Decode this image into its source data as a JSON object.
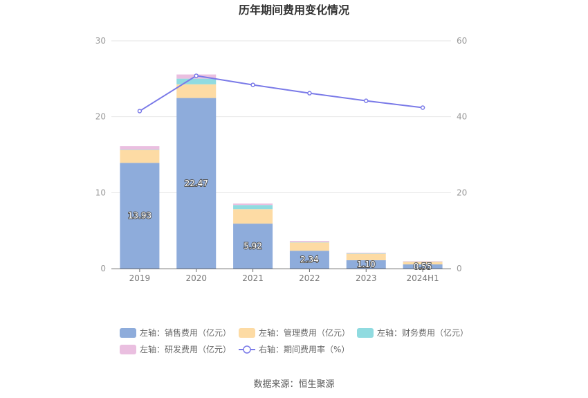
{
  "chart_data": {
    "type": "bar",
    "title": "历年期间费用变化情况",
    "source": "数据来源：恒生聚源",
    "categories": [
      "2019",
      "2020",
      "2021",
      "2022",
      "2023",
      "2024H1"
    ],
    "y_left": {
      "ylim": [
        0,
        30
      ],
      "ticks": [
        "0",
        "10",
        "20",
        "30"
      ]
    },
    "y_right": {
      "ylim": [
        0,
        60
      ],
      "ticks": [
        "0",
        "20",
        "40",
        "60"
      ]
    },
    "stacked": true,
    "grid": true,
    "legend_position": "bottom",
    "series": [
      {
        "name": "左轴：销售费用（亿元）",
        "type": "bar",
        "axis": "left",
        "color": "#8eacdb",
        "values": [
          13.93,
          22.47,
          5.92,
          2.34,
          1.1,
          0.55
        ],
        "labels": [
          "13.93",
          "22.47",
          "5.92",
          "2.34",
          "1.10",
          "0.55"
        ]
      },
      {
        "name": "左轴：管理费用（亿元）",
        "type": "bar",
        "axis": "left",
        "color": "#fddba4",
        "values": [
          1.7,
          1.8,
          1.9,
          1.1,
          0.85,
          0.35
        ]
      },
      {
        "name": "左轴：财务费用（亿元）",
        "type": "bar",
        "axis": "left",
        "color": "#90dbe0",
        "values": [
          0.05,
          0.75,
          0.55,
          0.05,
          0.05,
          0.02
        ]
      },
      {
        "name": "左轴：研发费用（亿元）",
        "type": "bar",
        "axis": "left",
        "color": "#eabfe0",
        "values": [
          0.45,
          0.55,
          0.2,
          0.15,
          0.08,
          0.05
        ]
      },
      {
        "name": "右轴：期间费用率（%）",
        "type": "line",
        "axis": "right",
        "color": "#7a7ae8",
        "values": [
          41.5,
          50.8,
          48.4,
          46.2,
          44.2,
          42.4
        ]
      }
    ]
  }
}
